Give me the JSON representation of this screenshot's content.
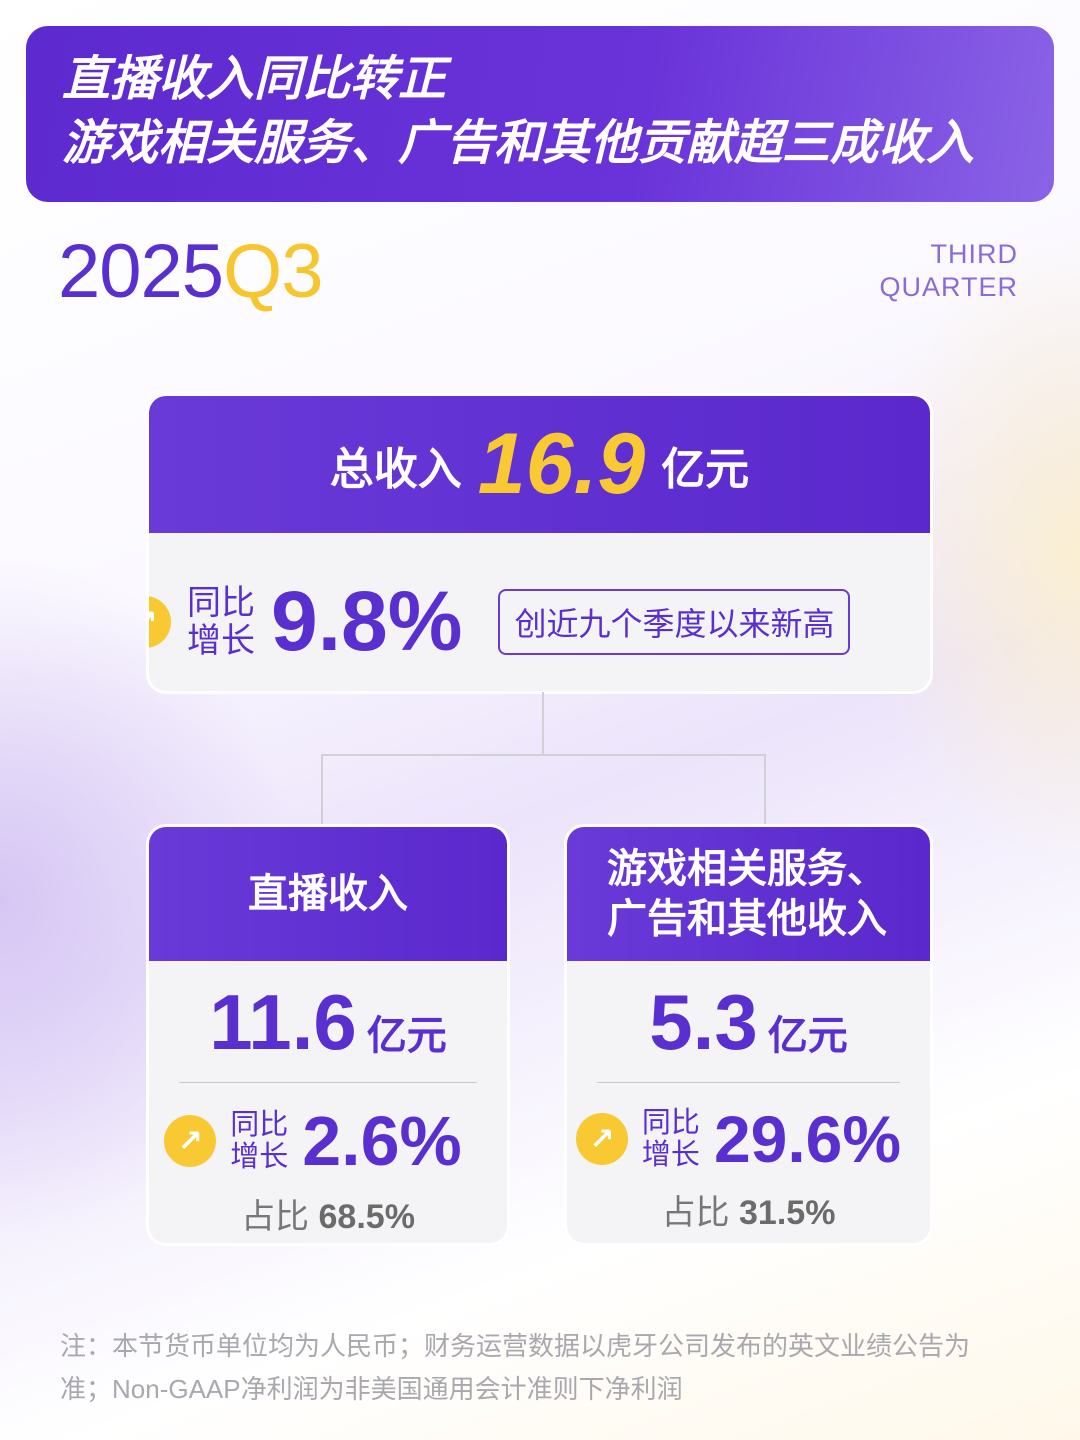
{
  "banner": {
    "line1": "直播收入同比转正",
    "line2": "游戏相关服务、广告和其他贡献超三成收入"
  },
  "period": {
    "year": "2025",
    "quarter": "Q3",
    "label1": "THIRD",
    "label2": "QUARTER"
  },
  "total": {
    "label": "总收入",
    "value": "16.9",
    "unit": "亿元",
    "yoy_label1": "同比",
    "yoy_label2": "增长",
    "yoy": "9.8%",
    "tag": "创近九个季度以来新高"
  },
  "segments": [
    {
      "title1": "直播收入",
      "title2": "",
      "value": "11.6",
      "unit": "亿元",
      "yoy_label1": "同比",
      "yoy_label2": "增长",
      "yoy": "2.6%",
      "share_label": "占比",
      "share": "68.5%"
    },
    {
      "title1": "游戏相关服务、",
      "title2": "广告和其他收入",
      "value": "5.3",
      "unit": "亿元",
      "yoy_label1": "同比",
      "yoy_label2": "增长",
      "yoy": "29.6%",
      "share_label": "占比",
      "share": "31.5%"
    }
  ],
  "note": {
    "text": "注：本节货币单位均为人民币；财务运营数据以虎牙公司发布的英文业绩公告为准；Non-GAAP净利润为非美国通用会计准则下净利润"
  },
  "colors": {
    "purple": "#5a2fcf",
    "yellow": "#f9c933",
    "card": "#f4f4f6"
  },
  "icons": {
    "trend": "trending-up-icon"
  }
}
